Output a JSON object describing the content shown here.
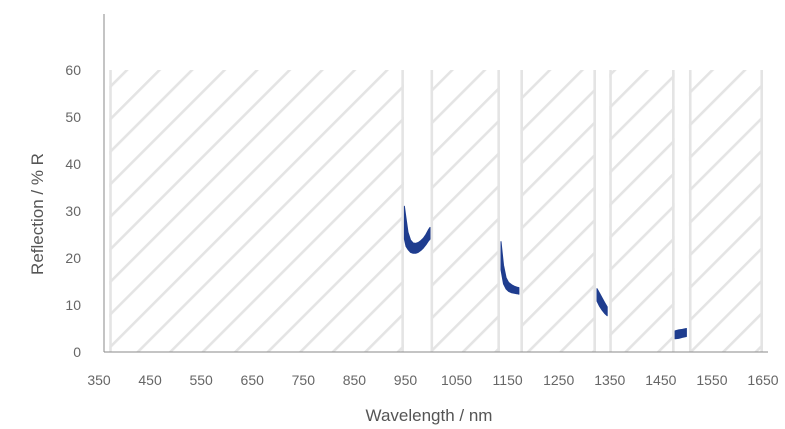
{
  "chart_data": {
    "type": "area",
    "xlabel": "Wavelength / nm",
    "ylabel": "Reflection / % R",
    "xlim": [
      350,
      1650
    ],
    "ylim": [
      0,
      60
    ],
    "x_ticks": [
      350,
      450,
      550,
      650,
      750,
      850,
      950,
      1050,
      1150,
      1250,
      1350,
      1450,
      1550,
      1650
    ],
    "y_ticks": [
      0,
      10,
      20,
      30,
      40,
      50,
      60
    ],
    "grid": false,
    "legend": "none",
    "colors": {
      "band": "#1f3d8f",
      "hatch": "#e4e4e4",
      "axis": "#8a8a8a"
    },
    "hatched_regions": [
      {
        "x": [
          370,
          947
        ]
      },
      {
        "x": [
          999,
          1135
        ]
      },
      {
        "x": [
          1175,
          1323
        ]
      },
      {
        "x": [
          1349,
          1477
        ]
      },
      {
        "x": [
          1505,
          1650
        ]
      }
    ],
    "bands": [
      {
        "x": [
          948,
          951,
          955,
          960,
          965,
          970,
          975,
          980,
          985,
          990,
          995,
          998
        ],
        "upper": [
          31,
          28.5,
          25.5,
          23.8,
          23.2,
          23.1,
          23.3,
          23.7,
          24.2,
          25,
          26,
          26.5
        ],
        "lower": [
          24,
          22.5,
          21.8,
          21.2,
          21,
          21,
          21.2,
          21.6,
          22.1,
          22.8,
          23.6,
          24
        ]
      },
      {
        "x": [
          1137,
          1142,
          1147,
          1152,
          1158,
          1163,
          1168,
          1172
        ],
        "upper": [
          23.5,
          18.5,
          15.8,
          14.8,
          14.3,
          14,
          13.8,
          13.7
        ],
        "lower": [
          17.5,
          14.5,
          13.4,
          12.9,
          12.6,
          12.5,
          12.4,
          12.3
        ]
      },
      {
        "x": [
          1325,
          1330,
          1335,
          1340,
          1345
        ],
        "upper": [
          13.5,
          12.5,
          11.5,
          10.5,
          9.6
        ],
        "lower": [
          10.8,
          9.7,
          8.9,
          8.2,
          7.7
        ]
      },
      {
        "x": [
          1478,
          1485,
          1492,
          1500
        ],
        "upper": [
          4.5,
          4.7,
          4.8,
          5
        ],
        "lower": [
          2.8,
          2.9,
          3.1,
          3.3
        ]
      }
    ]
  }
}
